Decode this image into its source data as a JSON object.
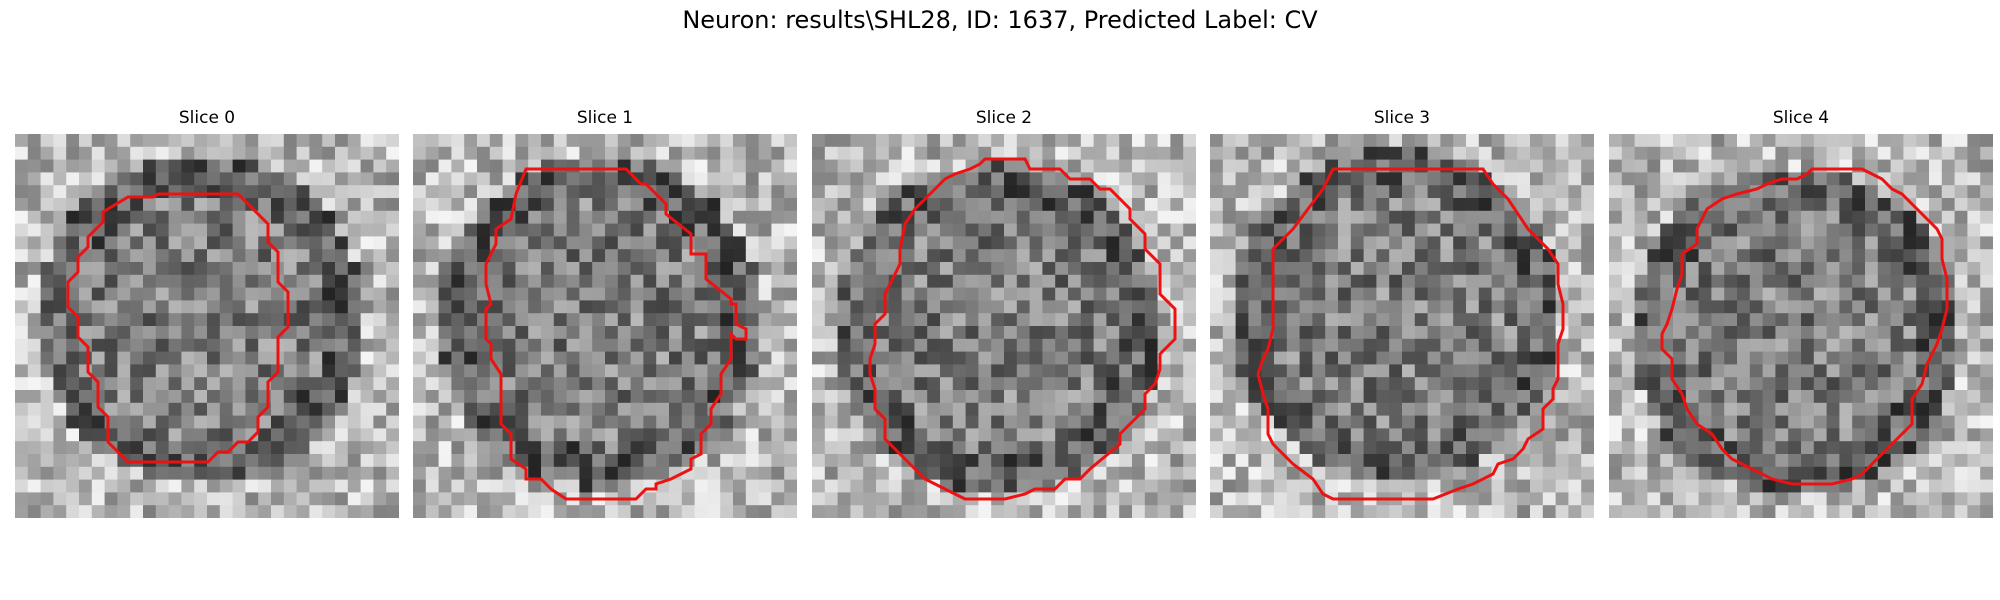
{
  "figure": {
    "title": "Neuron: results\\SHL28, ID: 1637, Predicted Label: CV"
  },
  "panels": [
    {
      "title": "Slice 0"
    },
    {
      "title": "Slice 1"
    },
    {
      "title": "Slice 2"
    },
    {
      "title": "Slice 3"
    },
    {
      "title": "Slice 4"
    }
  ],
  "colors": {
    "contour": "#ee1111",
    "background": "#ffffff"
  }
}
